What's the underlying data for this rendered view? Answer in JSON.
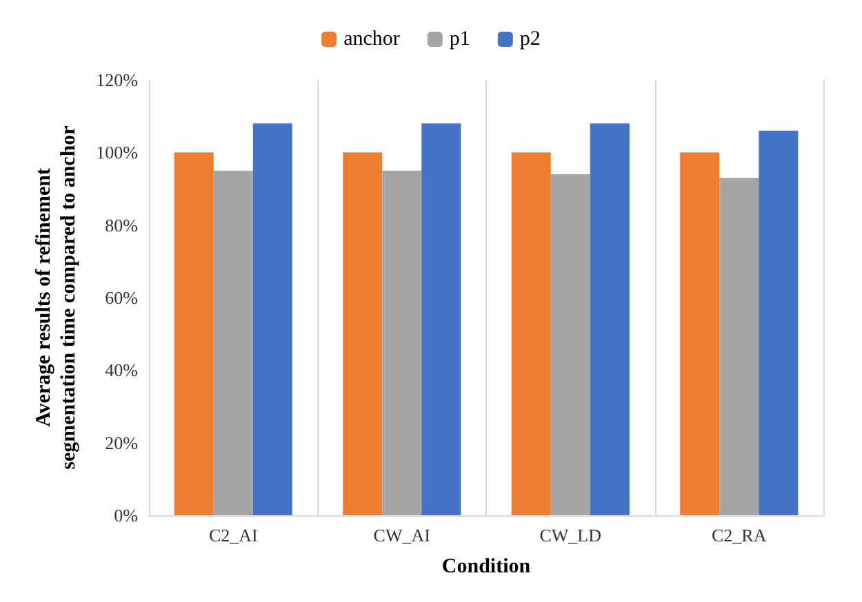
{
  "chart_data": {
    "type": "bar",
    "xlabel": "Condition",
    "ylabel": "Average results of refinement\nsegmentation time compared to anchor",
    "categories": [
      "C2_AI",
      "CW_AI",
      "CW_LD",
      "C2_RA"
    ],
    "series": [
      {
        "name": "anchor",
        "color": "#ed7d31",
        "values": [
          100,
          100,
          100,
          100
        ]
      },
      {
        "name": "p1",
        "color": "#a5a5a5",
        "values": [
          95,
          95,
          94,
          93
        ]
      },
      {
        "name": "p2",
        "color": "#4472c4",
        "values": [
          108,
          108,
          108,
          106
        ]
      }
    ],
    "ylim": [
      0,
      120
    ],
    "yticks": [
      {
        "value": 0,
        "label": "0%"
      },
      {
        "value": 20,
        "label": "20%"
      },
      {
        "value": 40,
        "label": "40%"
      },
      {
        "value": 60,
        "label": "60%"
      },
      {
        "value": 80,
        "label": "80%"
      },
      {
        "value": 100,
        "label": "100%"
      },
      {
        "value": 120,
        "label": "120%"
      }
    ],
    "grid": "x",
    "legend": "top"
  }
}
